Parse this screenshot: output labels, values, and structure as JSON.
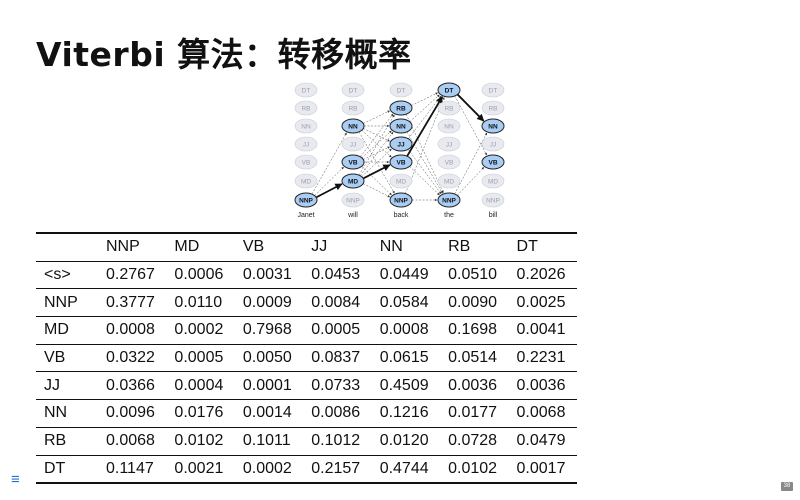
{
  "title": "Viterbi 算法：转移概率",
  "trellis": {
    "states": [
      "DT",
      "RB",
      "NN",
      "JJ",
      "VB",
      "MD",
      "NNP"
    ],
    "words": [
      "Janet",
      "will",
      "back",
      "the",
      "bill"
    ],
    "highlighted": [
      [
        "NNP"
      ],
      [
        "NN",
        "VB",
        "MD"
      ],
      [
        "RB",
        "NN",
        "JJ",
        "VB",
        "NNP"
      ],
      [
        "DT",
        "NNP"
      ],
      [
        "NN",
        "VB"
      ]
    ],
    "best_path": [
      "NNP",
      "MD",
      "VB",
      "DT",
      "NN"
    ]
  },
  "table": {
    "columns": [
      "",
      "NNP",
      "MD",
      "VB",
      "JJ",
      "NN",
      "RB",
      "DT"
    ],
    "rows": [
      {
        "label": "<s>",
        "values": [
          "0.2767",
          "0.0006",
          "0.0031",
          "0.0453",
          "0.0449",
          "0.0510",
          "0.2026"
        ]
      },
      {
        "label": "NNP",
        "values": [
          "0.3777",
          "0.0110",
          "0.0009",
          "0.0084",
          "0.0584",
          "0.0090",
          "0.0025"
        ]
      },
      {
        "label": "MD",
        "values": [
          "0.0008",
          "0.0002",
          "0.7968",
          "0.0005",
          "0.0008",
          "0.1698",
          "0.0041"
        ]
      },
      {
        "label": "VB",
        "values": [
          "0.0322",
          "0.0005",
          "0.0050",
          "0.0837",
          "0.0615",
          "0.0514",
          "0.2231"
        ]
      },
      {
        "label": "JJ",
        "values": [
          "0.0366",
          "0.0004",
          "0.0001",
          "0.0733",
          "0.4509",
          "0.0036",
          "0.0036"
        ]
      },
      {
        "label": "NN",
        "values": [
          "0.0096",
          "0.0176",
          "0.0014",
          "0.0086",
          "0.1216",
          "0.0177",
          "0.0068"
        ]
      },
      {
        "label": "RB",
        "values": [
          "0.0068",
          "0.0102",
          "0.1011",
          "0.1012",
          "0.0120",
          "0.0728",
          "0.0479"
        ]
      },
      {
        "label": "DT",
        "values": [
          "0.1147",
          "0.0021",
          "0.0002",
          "0.2157",
          "0.4744",
          "0.0102",
          "0.0017"
        ]
      }
    ]
  },
  "footer": {
    "menu_icon": "menu-icon",
    "menu_glyph": "≡",
    "page_number": "38"
  },
  "colors": {
    "node_active": "#a9cdf3",
    "node_inactive": "#e8eaf0",
    "text_inactive": "#9aa0aa"
  }
}
